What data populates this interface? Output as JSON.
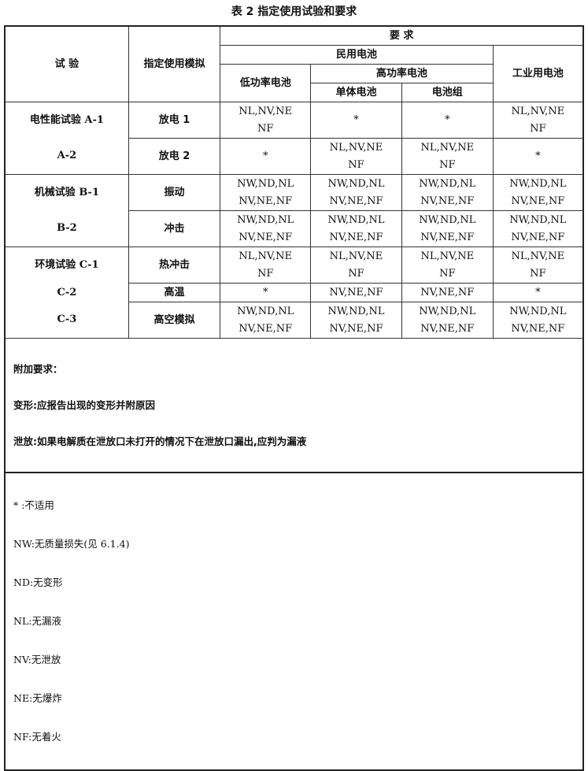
{
  "title": "表 2   指定使用试验和要求",
  "headers": {
    "test": "试        验",
    "simulation": "指定使用模拟",
    "requirements": "要              求",
    "civil": "民用电池",
    "low_power": "低功率电池",
    "high_power": "高功率电池",
    "single_cell": "单体电池",
    "pack": "电池组",
    "industrial": "工业用电池"
  },
  "rows": [
    {
      "test": "电性能试验 A-1",
      "sim": "放电 1",
      "low": "NL,NV,NE\nNF",
      "single": "*",
      "pack": "*",
      "industrial": "NL,NV,NE\nNF"
    },
    {
      "test": "A-2",
      "sim": "放电 2",
      "low": "*",
      "single": "NL,NV,NE\nNF",
      "pack": "NL,NV,NE\nNF",
      "industrial": "*"
    },
    {
      "test": "机械试验 B-1",
      "sim": "振动",
      "low": "NW,ND,NL\nNV,NE,NF",
      "single": "NW,ND,NL\nNV,NE,NF",
      "pack": "NW,ND,NL\nNV,NE,NF",
      "industrial": "NW,ND,NL\nNV,NE,NF"
    },
    {
      "test": "B-2",
      "sim": "冲击",
      "low": "NW,ND,NL\nNV,NE,NF",
      "single": "NW,ND,NL\nNV,NE,NF",
      "pack": "NW,ND,NL\nNV,NE,NF",
      "industrial": "NW,ND,NL\nNV,NE,NF"
    },
    {
      "test": "环境试验 C-1",
      "sim": "热冲击",
      "low": "NL,NV,NE\nNF",
      "single": "NL,NV,NE\nNF",
      "pack": "NL,NV,NE\nNF",
      "industrial": "NL,NV,NE\nNF"
    },
    {
      "test": "C-2",
      "sim": "高温",
      "low": "*",
      "single": "NV,NE,NF",
      "pack": "NV,NE,NF",
      "industrial": "*"
    },
    {
      "test": "C-3",
      "sim": "高空模拟",
      "low": "NW,ND,NL\nNV,NE,NF",
      "single": "NW,ND,NL\nNV,NE,NF",
      "pack": "NW,ND,NL\nNV,NE,NF",
      "industrial": "NW,ND,NL\nNV,NE,NF"
    }
  ],
  "notes": [
    "附加要求：",
    "变形:应报告出现的变形并附原因",
    "泄放:如果电解质在泄放口未打开的情况下在泄放口漏出,应判为漏液"
  ],
  "legend": [
    " * :不适用",
    "NW:无质量损失(见 6.1.4)",
    "ND:无变形",
    "NL:无漏液",
    "NV:无泄放",
    "NE:无爆炸",
    "NF:无着火"
  ]
}
